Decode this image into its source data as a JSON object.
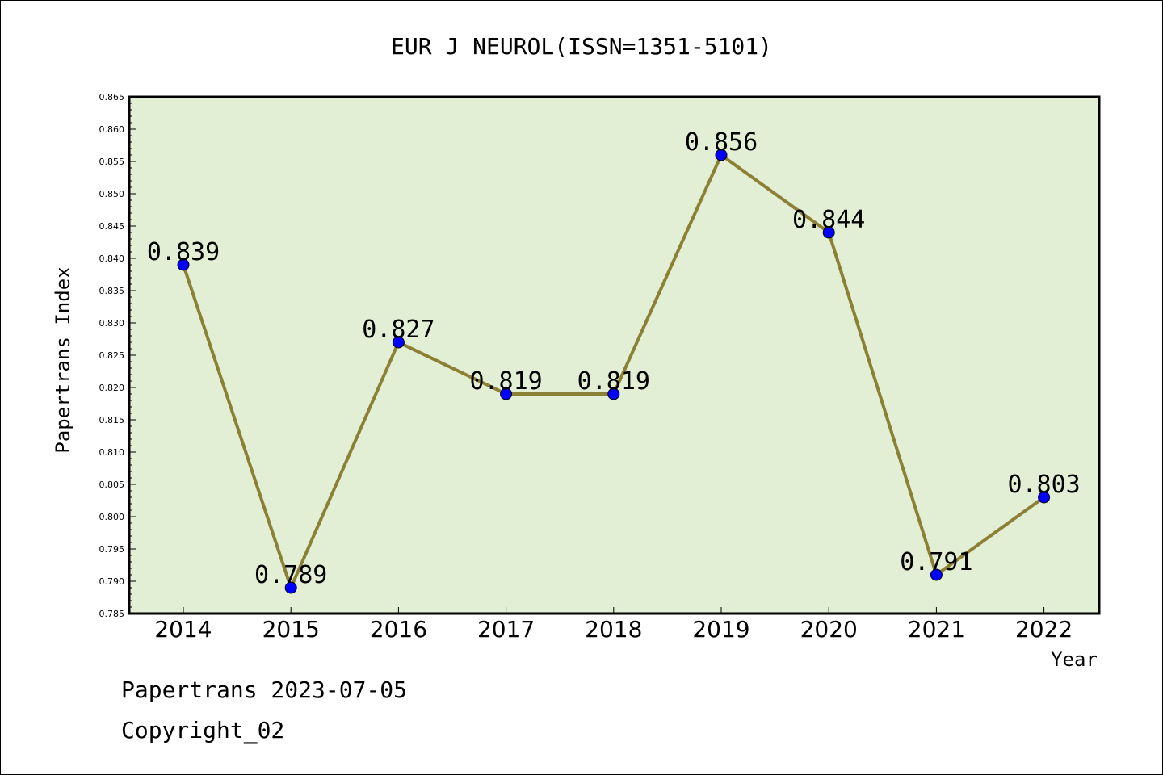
{
  "chart_data": {
    "type": "line",
    "title": "EUR J NEUROL(ISSN=1351-5101)",
    "xlabel": "Year",
    "ylabel": "Papertrans Index",
    "categories": [
      "2014",
      "2015",
      "2016",
      "2017",
      "2018",
      "2019",
      "2020",
      "2021",
      "2022"
    ],
    "values": [
      0.839,
      0.789,
      0.827,
      0.819,
      0.819,
      0.856,
      0.844,
      0.791,
      0.803
    ],
    "data_labels": [
      "0.839",
      "0.789",
      "0.827",
      "0.819",
      "0.819",
      "0.856",
      "0.844",
      "0.791",
      "0.803"
    ],
    "ylim": [
      0.785,
      0.865
    ],
    "yticks": [
      "0.785",
      "0.790",
      "0.795",
      "0.800",
      "0.805",
      "0.810",
      "0.815",
      "0.820",
      "0.825",
      "0.830",
      "0.835",
      "0.840",
      "0.845",
      "0.850",
      "0.855",
      "0.860",
      "0.865"
    ],
    "grid": false,
    "legend": "none",
    "colors": {
      "plot_background": "#e2efd5",
      "line": "#8c8035",
      "marker": "#0000ff",
      "axis": "#000000"
    }
  },
  "footer": {
    "date_line": "Papertrans 2023-07-05",
    "copyright": "Copyright_02"
  }
}
